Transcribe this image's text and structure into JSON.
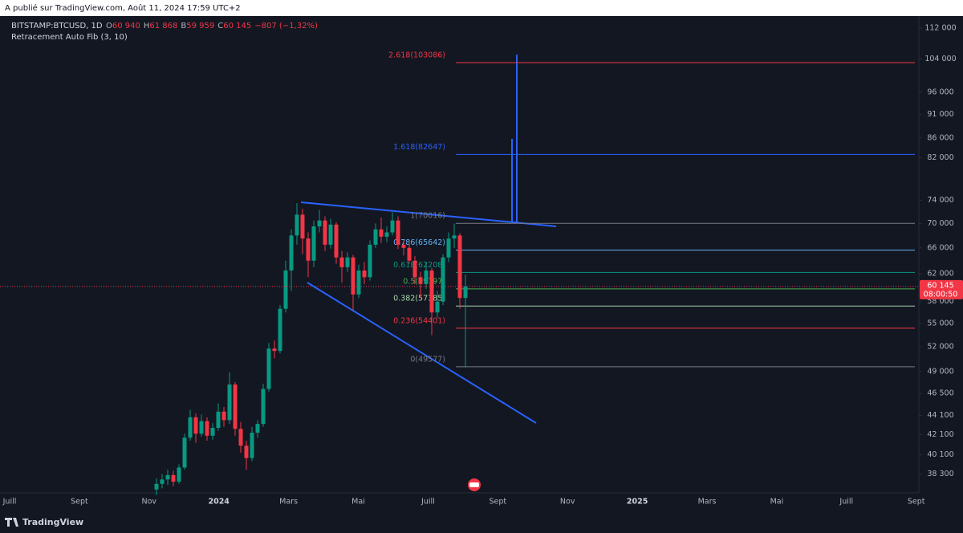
{
  "header": {
    "published": "A publié sur TradingView.com, Août 11, 2024 17:59 UTC+2"
  },
  "chart_data": {
    "type": "candlestick",
    "symbol": "BITSTAMP:BTCUSD, 1D",
    "ohlc_legend": [
      {
        "key": "O",
        "value": "60 940"
      },
      {
        "key": "H",
        "value": "61 868"
      },
      {
        "key": "B",
        "value": "59 959"
      },
      {
        "key": "C",
        "value": "60 145"
      }
    ],
    "change": "−807 (−1,32%)",
    "indicator": "Retracement Auto Fib (3, 10)",
    "up_color": "#089981",
    "down_color": "#f23645",
    "log_scale": true,
    "ylim": [
      36600,
      115300
    ],
    "yticks": [
      {
        "value": 112000,
        "label": "112 000"
      },
      {
        "value": 104000,
        "label": "104 000"
      },
      {
        "value": 96000,
        "label": "96 000"
      },
      {
        "value": 91000,
        "label": "91 000"
      },
      {
        "value": 86000,
        "label": "86 000"
      },
      {
        "value": 82000,
        "label": "82 000"
      },
      {
        "value": 74000,
        "label": "74 000"
      },
      {
        "value": 70000,
        "label": "70 000"
      },
      {
        "value": 66000,
        "label": "66 000"
      },
      {
        "value": 62000,
        "label": "62 000"
      },
      {
        "value": 58000,
        "label": "58 000"
      },
      {
        "value": 55000,
        "label": "55 000"
      },
      {
        "value": 52000,
        "label": "52 000"
      },
      {
        "value": 49000,
        "label": "49 000"
      },
      {
        "value": 46500,
        "label": "46 500"
      },
      {
        "value": 44100,
        "label": "44 100"
      },
      {
        "value": 42100,
        "label": "42 100"
      },
      {
        "value": 40100,
        "label": "40 100"
      },
      {
        "value": 38300,
        "label": "38 300"
      }
    ],
    "xticks": [
      "Juill",
      "Sept",
      "Nov",
      "2024",
      "Mars",
      "Mai",
      "Juill",
      "Sept",
      "Nov",
      "2025",
      "Mars",
      "Mai",
      "Juill",
      "Sept"
    ],
    "candles": [
      {
        "open": 36900,
        "high": 37900,
        "low": 36400,
        "close": 37400
      },
      {
        "open": 37400,
        "high": 38300,
        "low": 37000,
        "close": 37800
      },
      {
        "open": 37800,
        "high": 38700,
        "low": 37300,
        "close": 38200
      },
      {
        "open": 38200,
        "high": 38600,
        "low": 37200,
        "close": 37600
      },
      {
        "open": 37600,
        "high": 39200,
        "low": 37400,
        "close": 38900
      },
      {
        "open": 38900,
        "high": 42200,
        "low": 38700,
        "close": 41800
      },
      {
        "open": 41800,
        "high": 44700,
        "low": 41500,
        "close": 43900
      },
      {
        "open": 43900,
        "high": 44300,
        "low": 41300,
        "close": 42200
      },
      {
        "open": 42200,
        "high": 44200,
        "low": 41900,
        "close": 43500
      },
      {
        "open": 43500,
        "high": 43900,
        "low": 41500,
        "close": 42000
      },
      {
        "open": 42000,
        "high": 43300,
        "low": 41600,
        "close": 42800
      },
      {
        "open": 42800,
        "high": 45400,
        "low": 42500,
        "close": 44500
      },
      {
        "open": 44500,
        "high": 45000,
        "low": 42900,
        "close": 43600
      },
      {
        "open": 43600,
        "high": 48900,
        "low": 43200,
        "close": 47500
      },
      {
        "open": 47500,
        "high": 47800,
        "low": 42000,
        "close": 42700
      },
      {
        "open": 42700,
        "high": 43400,
        "low": 40300,
        "close": 41000
      },
      {
        "open": 41000,
        "high": 41500,
        "low": 38700,
        "close": 39800
      },
      {
        "open": 39800,
        "high": 42900,
        "low": 39500,
        "close": 42300
      },
      {
        "open": 42300,
        "high": 43600,
        "low": 41800,
        "close": 43200
      },
      {
        "open": 43200,
        "high": 47600,
        "low": 42900,
        "close": 47000
      },
      {
        "open": 47000,
        "high": 52500,
        "low": 46700,
        "close": 51800
      },
      {
        "open": 51800,
        "high": 52800,
        "low": 50600,
        "close": 51500
      },
      {
        "open": 51500,
        "high": 57500,
        "low": 51200,
        "close": 57000
      },
      {
        "open": 57000,
        "high": 64000,
        "low": 56500,
        "close": 62500
      },
      {
        "open": 62500,
        "high": 69000,
        "low": 59500,
        "close": 68000
      },
      {
        "open": 68000,
        "high": 73500,
        "low": 66500,
        "close": 71500
      },
      {
        "open": 71500,
        "high": 72500,
        "low": 65000,
        "close": 67500
      },
      {
        "open": 67500,
        "high": 68500,
        "low": 61500,
        "close": 64000
      },
      {
        "open": 64000,
        "high": 70500,
        "low": 63000,
        "close": 69500
      },
      {
        "open": 69500,
        "high": 72300,
        "low": 68500,
        "close": 70500
      },
      {
        "open": 70500,
        "high": 71200,
        "low": 65500,
        "close": 66500
      },
      {
        "open": 66500,
        "high": 70800,
        "low": 65900,
        "close": 69800
      },
      {
        "open": 69800,
        "high": 70200,
        "low": 63500,
        "close": 64500
      },
      {
        "open": 64500,
        "high": 65500,
        "low": 60700,
        "close": 63000
      },
      {
        "open": 63000,
        "high": 65300,
        "low": 62300,
        "close": 64500
      },
      {
        "open": 64500,
        "high": 64900,
        "low": 56800,
        "close": 59000
      },
      {
        "open": 59000,
        "high": 63400,
        "low": 58500,
        "close": 62500
      },
      {
        "open": 62500,
        "high": 63800,
        "low": 60500,
        "close": 61500
      },
      {
        "open": 61500,
        "high": 67200,
        "low": 61000,
        "close": 66500
      },
      {
        "open": 66500,
        "high": 70000,
        "low": 66000,
        "close": 69000
      },
      {
        "open": 69000,
        "high": 71000,
        "low": 66800,
        "close": 67800
      },
      {
        "open": 67800,
        "high": 69500,
        "low": 66900,
        "close": 68500
      },
      {
        "open": 68500,
        "high": 71900,
        "low": 68000,
        "close": 70500
      },
      {
        "open": 70500,
        "high": 71200,
        "low": 65800,
        "close": 66500
      },
      {
        "open": 66500,
        "high": 67200,
        "low": 64800,
        "close": 66000
      },
      {
        "open": 66000,
        "high": 66800,
        "low": 63500,
        "close": 64000
      },
      {
        "open": 64000,
        "high": 64700,
        "low": 60500,
        "close": 61500
      },
      {
        "open": 61500,
        "high": 62300,
        "low": 58500,
        "close": 60500
      },
      {
        "open": 60500,
        "high": 63700,
        "low": 59800,
        "close": 62500
      },
      {
        "open": 62500,
        "high": 62900,
        "low": 53500,
        "close": 56500
      },
      {
        "open": 56500,
        "high": 59500,
        "low": 55800,
        "close": 58000
      },
      {
        "open": 58000,
        "high": 65000,
        "low": 57500,
        "close": 64500
      },
      {
        "open": 64500,
        "high": 68500,
        "low": 63800,
        "close": 67500
      },
      {
        "open": 67500,
        "high": 70000,
        "low": 66000,
        "close": 68000
      },
      {
        "open": 68000,
        "high": 68400,
        "low": 57000,
        "close": 58500
      },
      {
        "open": 58500,
        "high": 61900,
        "low": 49500,
        "close": 60145
      }
    ],
    "fib_levels": [
      {
        "label": "2.618(103086)",
        "price": 103086,
        "color": "#f23645"
      },
      {
        "label": "1.618(82647)",
        "price": 82647,
        "color": "#2962ff"
      },
      {
        "label": "1(70016)",
        "price": 70016,
        "color": "#787b86"
      },
      {
        "label": "0.786(65642)",
        "price": 65642,
        "color": "#64b5f6"
      },
      {
        "label": "0.618(62208)",
        "price": 62208,
        "color": "#089981"
      },
      {
        "label": "0.5(59797)",
        "price": 59797,
        "color": "#4caf50"
      },
      {
        "label": "0.382(57385)",
        "price": 57385,
        "color": "#a5d6a7"
      },
      {
        "label": "0.236(54401)",
        "price": 54401,
        "color": "#f23645"
      },
      {
        "label": "0(49577)",
        "price": 49577,
        "color": "#787b86"
      }
    ],
    "last_price": {
      "value": 60145,
      "label": "60 145",
      "countdown": "08:00:50",
      "color": "#f23645"
    }
  },
  "footer": {
    "brand": "TradingView"
  }
}
